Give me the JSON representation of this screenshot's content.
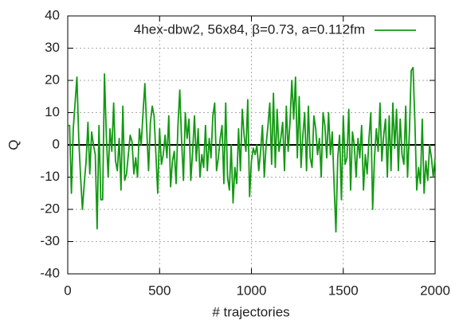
{
  "chart_data": {
    "type": "line",
    "x_label": "# trajectories",
    "y_label": "Q",
    "xlim": [
      0,
      2000
    ],
    "xticks": [
      0,
      500,
      1000,
      1500,
      2000
    ],
    "ylim": [
      -40,
      40
    ],
    "yticks": [
      -40,
      -30,
      -20,
      -10,
      0,
      10,
      20,
      30,
      40
    ],
    "grid": true,
    "hline": 0,
    "legend": "top-right",
    "x": [
      0,
      10,
      20,
      30,
      40,
      50,
      60,
      70,
      80,
      90,
      100,
      110,
      120,
      130,
      140,
      150,
      160,
      170,
      180,
      190,
      200,
      210,
      220,
      230,
      240,
      250,
      260,
      270,
      280,
      290,
      300,
      310,
      320,
      330,
      340,
      350,
      360,
      370,
      380,
      390,
      400,
      410,
      420,
      430,
      440,
      450,
      460,
      470,
      480,
      490,
      500,
      510,
      520,
      530,
      540,
      550,
      560,
      570,
      580,
      590,
      600,
      610,
      620,
      630,
      640,
      650,
      660,
      670,
      680,
      690,
      700,
      710,
      720,
      730,
      740,
      750,
      760,
      770,
      780,
      790,
      800,
      810,
      820,
      830,
      840,
      850,
      860,
      870,
      880,
      890,
      900,
      910,
      920,
      930,
      940,
      950,
      960,
      970,
      980,
      990,
      1000,
      1010,
      1020,
      1030,
      1040,
      1050,
      1060,
      1070,
      1080,
      1090,
      1100,
      1110,
      1120,
      1130,
      1140,
      1150,
      1160,
      1170,
      1180,
      1190,
      1200,
      1210,
      1220,
      1230,
      1240,
      1250,
      1260,
      1270,
      1280,
      1290,
      1300,
      1310,
      1320,
      1330,
      1340,
      1350,
      1360,
      1370,
      1380,
      1390,
      1400,
      1410,
      1420,
      1430,
      1440,
      1450,
      1460,
      1470,
      1480,
      1490,
      1500,
      1510,
      1520,
      1530,
      1540,
      1550,
      1560,
      1570,
      1580,
      1590,
      1600,
      1610,
      1620,
      1630,
      1640,
      1650,
      1660,
      1670,
      1680,
      1690,
      1700,
      1710,
      1720,
      1730,
      1740,
      1750,
      1760,
      1770,
      1780,
      1790,
      1800,
      1810,
      1820,
      1830,
      1840,
      1850,
      1860,
      1870,
      1880,
      1890,
      1900,
      1910,
      1920,
      1930,
      1940,
      1950,
      1960,
      1970,
      1980,
      1990,
      2000
    ],
    "series": [
      {
        "name": "4hex-dbw2, 56x84, β=0.73, a=0.112fm",
        "color": "#119911",
        "values": [
          6,
          6,
          -15,
          5,
          13,
          21,
          2,
          -10,
          -20,
          -12,
          -5,
          7,
          -9,
          4,
          0,
          -3,
          -26,
          6,
          -17,
          -17,
          22,
          3,
          -10,
          5,
          -2,
          13,
          -5,
          -8,
          2,
          -14,
          12,
          -11,
          -9,
          -3,
          3,
          1,
          -9,
          -4,
          -10,
          5,
          0,
          10,
          19,
          5,
          -8,
          7,
          12,
          9,
          -3,
          -15,
          5,
          -6,
          -3,
          3,
          -4,
          9,
          -13,
          -5,
          -2,
          -12,
          6,
          17,
          1,
          -11,
          10,
          2,
          8,
          -11,
          -2,
          9,
          -5,
          5,
          -10,
          -3,
          -7,
          6,
          -8,
          2,
          -4,
          9,
          13,
          -8,
          -4,
          2,
          6,
          -12,
          13,
          -10,
          -14,
          0,
          -18,
          -7,
          -12,
          5,
          -8,
          11,
          3,
          -2,
          14,
          -16,
          -5,
          -1,
          -3,
          0,
          -8,
          -2,
          6,
          -10,
          0,
          6,
          13,
          -6,
          16,
          -7,
          11,
          -2,
          2,
          7,
          -8,
          12,
          -2,
          7,
          20,
          8,
          21,
          -4,
          15,
          -7,
          3,
          10,
          -8,
          12,
          -4,
          -7,
          9,
          5,
          -3,
          2,
          -10,
          10,
          6,
          -4,
          10,
          -3,
          4,
          -12,
          -27,
          -4,
          3,
          -17,
          9,
          -6,
          -4,
          11,
          -14,
          4,
          0,
          -10,
          2,
          -4,
          6,
          -14,
          -3,
          -9,
          2,
          10,
          -20,
          -4,
          5,
          -2,
          13,
          -5,
          3,
          8,
          -10,
          9,
          -8,
          13,
          -1,
          11,
          -8,
          8,
          -3,
          -6,
          12,
          -10,
          4,
          23,
          24,
          7,
          -14,
          -7,
          -12,
          8,
          -15,
          -5,
          -11,
          0,
          -4,
          -10,
          -4
        ]
      }
    ]
  }
}
